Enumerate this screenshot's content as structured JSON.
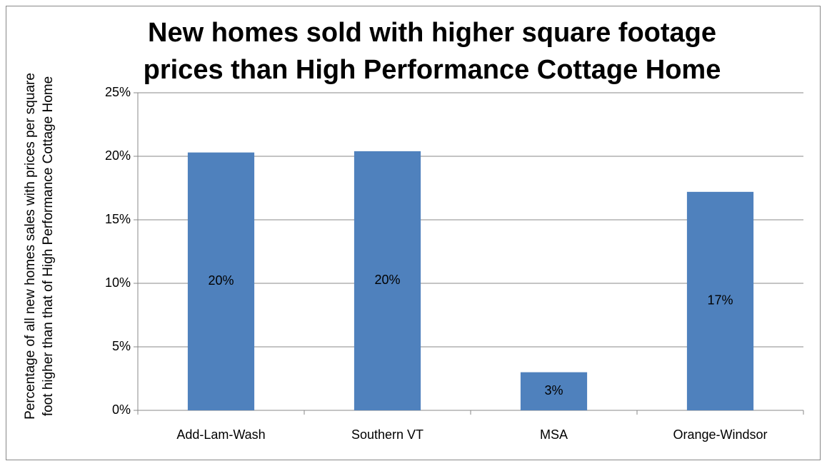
{
  "chart_data": {
    "type": "bar",
    "title": "New homes sold with higher square footage prices than High Performance Cottage Home",
    "y_label": "Percentage of all new homes sales with prices per square foot higher than that of High Performance Cottage Home",
    "categories": [
      "Add-Lam-Wash",
      "Southern VT",
      "MSA",
      "Orange-Windsor"
    ],
    "values": [
      20.3,
      20.4,
      3.0,
      17.2
    ],
    "value_labels": [
      "20%",
      "20%",
      "3%",
      "17%"
    ],
    "color": "#4f81bd",
    "ylim": [
      0,
      25
    ],
    "yticks": [
      {
        "value": 0,
        "label": "0%"
      },
      {
        "value": 5,
        "label": "5%"
      },
      {
        "value": 10,
        "label": "10%"
      },
      {
        "value": 15,
        "label": "15%"
      },
      {
        "value": 20,
        "label": "20%"
      },
      {
        "value": 25,
        "label": "25%"
      }
    ],
    "grid": true
  }
}
